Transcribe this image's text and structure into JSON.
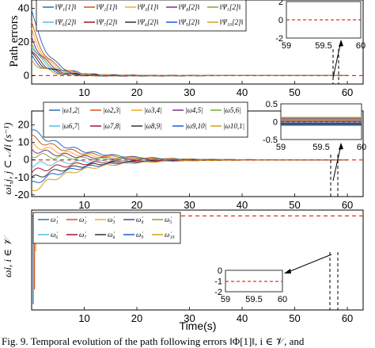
{
  "figure": {
    "caption": "Fig. 9.   Temporal evolution of the path following errors ‖Φ[1]‖, i ∈ 𝒱, and",
    "x_axis_label": "Time(s)"
  },
  "colors": {
    "reference": "#e03020",
    "palette": [
      "#2a6fb5",
      "#d95319",
      "#edb120",
      "#7e2f8e",
      "#77ac30",
      "#4dbeee",
      "#a2142f",
      "#333333",
      "#1a5fd0",
      "#d4a017"
    ]
  },
  "chart_data": [
    {
      "type": "line",
      "panel": "top",
      "ylabel": "Path errors",
      "xlim": [
        0,
        63
      ],
      "ylim": [
        -5,
        45
      ],
      "x_ticks": [
        "10",
        "20",
        "30",
        "40",
        "50",
        "60"
      ],
      "y_ticks": [
        "0",
        "20",
        "40"
      ],
      "legend": [
        "‖Ψ₁[1]‖",
        "‖Ψ₂[1]‖",
        "‖Ψ₃[1]‖",
        "‖Ψ₄[2]‖",
        "‖Ψ₅[2]‖",
        "‖Ψ₆[2]‖",
        "‖Ψ₇[2]‖",
        "‖Ψ₈[2]‖",
        "‖Ψ₉[2]‖",
        "‖Ψ₁₀[2]‖"
      ],
      "series_initial": [
        39,
        31,
        27,
        23,
        20,
        18,
        15,
        13,
        11,
        9
      ],
      "decay": 0.35,
      "inset": {
        "xlim": [
          59,
          60
        ],
        "ylim": [
          -2,
          2
        ],
        "x_ticks": [
          "59",
          "59.5",
          "60"
        ],
        "y_ticks": [
          "2",
          "0",
          "-2"
        ],
        "value": 0
      }
    },
    {
      "type": "line",
      "panel": "middle",
      "ylabel": "ωi,j, j ⊂ 𝒩i (s⁻¹)",
      "xlim": [
        0,
        63
      ],
      "ylim": [
        -21,
        28
      ],
      "x_ticks": [
        "10",
        "20",
        "30",
        "40",
        "50",
        "60"
      ],
      "y_ticks": [
        "20",
        "10",
        "0",
        "-10",
        "-20"
      ],
      "legend": [
        "|ω1,2|",
        "|ω2,3|",
        "|ω3,4|",
        "|ω4,5|",
        "|ω5,6|",
        "|ω6,7|",
        "|ω7,8|",
        "|ω8,9|",
        "|ω9,10|",
        "|ω10,1|"
      ],
      "series_initial": [
        17,
        13,
        9,
        6,
        3,
        -3,
        -7,
        -11,
        -14,
        -18
      ],
      "decay": 0.12,
      "inset": {
        "xlim": [
          59,
          60
        ],
        "ylim": [
          -0.5,
          0.5
        ],
        "x_ticks": [
          "59",
          "59.5",
          "60"
        ],
        "y_ticks": [
          "0.5",
          "0",
          "-0.5"
        ],
        "levels": [
          0.1,
          0.07,
          0.04,
          0.02,
          0.0,
          -0.02,
          -0.04,
          -0.07,
          -0.1,
          0.12
        ]
      }
    },
    {
      "type": "line",
      "panel": "bottom",
      "ylabel": "ω̇i, i ∈ 𝒱",
      "xlim": [
        0,
        63
      ],
      "ylim": [
        -160,
        10
      ],
      "x_ticks": [
        "10",
        "20",
        "30",
        "40",
        "50",
        "60"
      ],
      "legend": [
        "ω̇₁",
        "ω̇₂",
        "ω̇₃",
        "ω̇₄",
        "ω̇₅",
        "ω̇₆",
        "ω̇₇",
        "ω̇₈",
        "ω̇₉",
        "ω̇₁₀"
      ],
      "spikes": [
        {
          "x": 0.3,
          "value": -150
        },
        {
          "x": 0.55,
          "value": -125
        },
        {
          "x": 0.8,
          "value": -60
        },
        {
          "x": 2.0,
          "value": -15
        }
      ],
      "inset": {
        "xlim": [
          59,
          60
        ],
        "ylim": [
          -2,
          0
        ],
        "x_ticks": [
          "59",
          "59.5",
          "60"
        ],
        "y_ticks": [
          "0",
          "-1",
          "-2"
        ],
        "value": -1
      }
    }
  ]
}
